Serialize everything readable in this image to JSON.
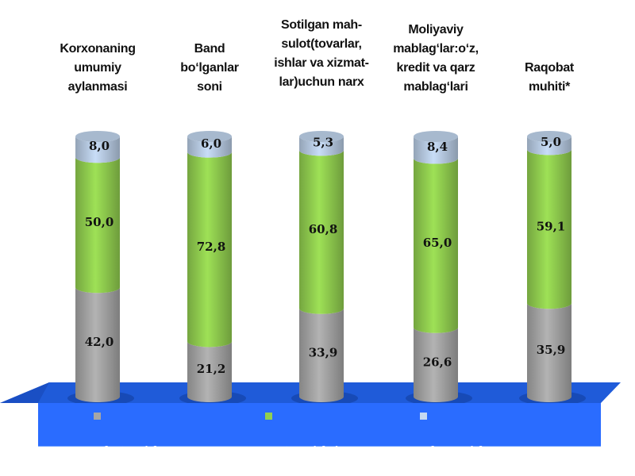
{
  "chart_data": {
    "type": "bar",
    "stacked": true,
    "style": "3d-cylinder",
    "categories": [
      "Korxonaning\numumiy\naylanmasi",
      "Band\nbo‘lganlar\nsoni",
      "Sotilgan mah-\nsulot(tovarlar,\nishlar va xizmat-\nlar)uchun narx",
      "Moliyaviy\nmablag‘lar:o‘z,\nkredit va qarz\nmablag‘lari",
      "Raqobat\nmuhiti*"
    ],
    "series": [
      {
        "name": "ko‘payish\n(yahshilanish*)",
        "color": "#a6a6a6",
        "values": [
          42.0,
          21.2,
          33.9,
          26.6,
          35.9
        ],
        "labels": [
          "42,0",
          "21,2",
          "33,9",
          "26,6",
          "35,9"
        ]
      },
      {
        "name": "o‘zgarishsiz",
        "color": "#92d050",
        "values": [
          50.0,
          72.8,
          60.8,
          65.0,
          59.1
        ],
        "labels": [
          "50,0",
          "72,8",
          "60,8",
          "65,0",
          "59,1"
        ]
      },
      {
        "name": "kamayish\n(yomonlashish*)",
        "color": "#b9cde5",
        "values": [
          8.0,
          6.0,
          5.3,
          8.4,
          5.0
        ],
        "labels": [
          "8,0",
          "6,0",
          "5,3",
          "8,4",
          "5,0"
        ]
      }
    ],
    "ylim": [
      0,
      100
    ],
    "legend": "bottom",
    "grid": false,
    "floor_color": "#1f5bd9",
    "legend_bg": "#2a6cff"
  }
}
